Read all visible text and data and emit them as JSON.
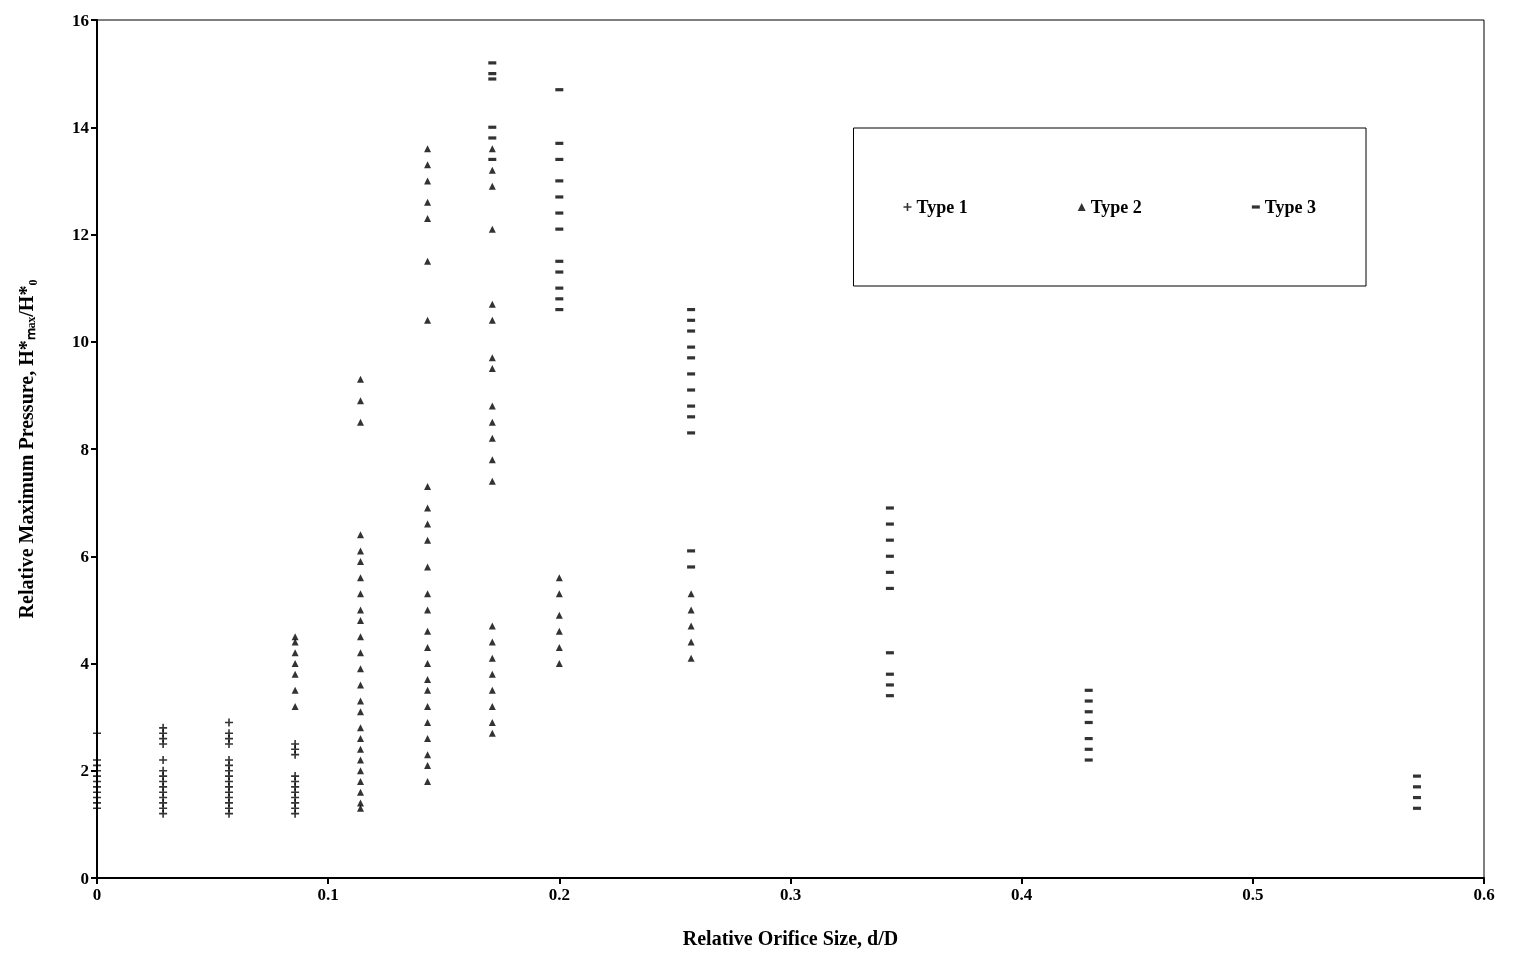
{
  "chart_data": {
    "type": "scatter",
    "xlabel": "Relative Orifice Size, d/D",
    "ylabel": "Relative Maximum Pressure, H*ₘₐₓ/H*₀",
    "xlim": [
      0,
      0.6
    ],
    "xticks": [
      0,
      0.1,
      0.2,
      0.3,
      0.4,
      0.5,
      0.6
    ],
    "ylim": [
      0,
      16
    ],
    "yticks": [
      0,
      2,
      4,
      6,
      8,
      10,
      12,
      14,
      16
    ],
    "grid": false,
    "legend": "top right",
    "series": [
      {
        "name": "Type 1",
        "color": "#000000",
        "marker": "cross",
        "x": [
          0,
          0,
          0,
          0,
          0,
          0,
          0,
          0,
          0,
          0,
          0,
          0.0286,
          0.0286,
          0.0286,
          0.0286,
          0.0286,
          0.0286,
          0.0286,
          0.0286,
          0.0286,
          0.0286,
          0.0286,
          0.0286,
          0.0286,
          0.0286,
          0.0571,
          0.0571,
          0.0571,
          0.0571,
          0.0571,
          0.0571,
          0.0571,
          0.0571,
          0.0571,
          0.0571,
          0.0571,
          0.0571,
          0.0571,
          0.0571,
          0.0571,
          0.0857,
          0.0857,
          0.0857,
          0.0857,
          0.0857,
          0.0857,
          0.0857,
          0.0857,
          0.0857,
          0.0857,
          0.0857
        ],
        "values": [
          1.3,
          1.4,
          1.5,
          1.6,
          1.7,
          1.8,
          1.9,
          2.0,
          2.1,
          2.2,
          2.7,
          1.2,
          1.3,
          1.4,
          1.5,
          1.6,
          1.7,
          1.8,
          1.9,
          2.0,
          2.2,
          2.5,
          2.6,
          2.7,
          2.8,
          1.2,
          1.3,
          1.4,
          1.5,
          1.6,
          1.7,
          1.8,
          1.9,
          2.0,
          2.1,
          2.2,
          2.5,
          2.6,
          2.7,
          2.9,
          1.2,
          1.3,
          1.4,
          1.5,
          1.6,
          1.7,
          1.8,
          1.9,
          2.3,
          2.4,
          2.5
        ]
      },
      {
        "name": "Type 2",
        "color": "#000000",
        "marker": "triangle",
        "x": [
          0.0857,
          0.0857,
          0.0857,
          0.0857,
          0.0857,
          0.0857,
          0.0857,
          0.114,
          0.114,
          0.114,
          0.114,
          0.114,
          0.114,
          0.114,
          0.114,
          0.114,
          0.114,
          0.114,
          0.114,
          0.114,
          0.114,
          0.114,
          0.114,
          0.114,
          0.114,
          0.114,
          0.114,
          0.114,
          0.114,
          0.114,
          0.114,
          0.114,
          0.143,
          0.143,
          0.143,
          0.143,
          0.143,
          0.143,
          0.143,
          0.143,
          0.143,
          0.143,
          0.143,
          0.143,
          0.143,
          0.143,
          0.143,
          0.143,
          0.143,
          0.143,
          0.143,
          0.143,
          0.143,
          0.143,
          0.143,
          0.143,
          0.143,
          0.171,
          0.171,
          0.171,
          0.171,
          0.171,
          0.171,
          0.171,
          0.171,
          0.171,
          0.171,
          0.171,
          0.171,
          0.171,
          0.171,
          0.171,
          0.171,
          0.171,
          0.171,
          0.171,
          0.171,
          0.171,
          0.2,
          0.2,
          0.2,
          0.2,
          0.2,
          0.2,
          0.257,
          0.257,
          0.257,
          0.257,
          0.257
        ],
        "values": [
          3.2,
          3.5,
          3.8,
          4.0,
          4.2,
          4.4,
          4.5,
          1.3,
          1.4,
          1.6,
          1.8,
          2.0,
          2.2,
          2.4,
          2.6,
          2.8,
          3.1,
          3.3,
          3.6,
          3.9,
          4.2,
          4.5,
          4.8,
          5.0,
          5.3,
          5.6,
          5.9,
          6.1,
          6.4,
          8.5,
          8.9,
          9.3,
          1.8,
          2.1,
          2.3,
          2.6,
          2.9,
          3.2,
          3.5,
          3.7,
          4.0,
          4.3,
          4.6,
          5.0,
          5.3,
          5.8,
          6.3,
          6.6,
          6.9,
          7.3,
          10.4,
          11.5,
          12.3,
          12.6,
          13.0,
          13.3,
          13.6,
          2.7,
          2.9,
          3.2,
          3.5,
          3.8,
          4.1,
          4.4,
          4.7,
          7.4,
          7.8,
          8.2,
          8.5,
          8.8,
          9.5,
          9.7,
          10.4,
          10.7,
          12.1,
          12.9,
          13.2,
          13.6,
          4.0,
          4.3,
          4.6,
          4.9,
          5.3,
          5.6,
          4.1,
          4.4,
          4.7,
          5.0,
          5.3
        ]
      },
      {
        "name": "Type 3",
        "color": "#000000",
        "marker": "square",
        "x": [
          0.171,
          0.171,
          0.171,
          0.171,
          0.171,
          0.171,
          0.2,
          0.2,
          0.2,
          0.2,
          0.2,
          0.2,
          0.2,
          0.2,
          0.2,
          0.2,
          0.2,
          0.2,
          0.257,
          0.257,
          0.257,
          0.257,
          0.257,
          0.257,
          0.257,
          0.257,
          0.257,
          0.257,
          0.257,
          0.257,
          0.343,
          0.343,
          0.343,
          0.343,
          0.343,
          0.343,
          0.343,
          0.343,
          0.343,
          0.343,
          0.429,
          0.429,
          0.429,
          0.429,
          0.429,
          0.429,
          0.429,
          0.571,
          0.571,
          0.571,
          0.571
        ],
        "values": [
          13.4,
          13.8,
          14.0,
          14.9,
          15.0,
          15.2,
          10.6,
          10.8,
          11.0,
          11.3,
          11.5,
          12.1,
          12.4,
          12.7,
          13.0,
          13.4,
          13.7,
          14.7,
          5.8,
          6.1,
          8.3,
          8.6,
          8.8,
          9.1,
          9.4,
          9.7,
          9.9,
          10.2,
          10.4,
          10.6,
          3.4,
          3.6,
          3.8,
          4.2,
          5.4,
          5.7,
          6.0,
          6.3,
          6.6,
          6.9,
          2.2,
          2.4,
          2.6,
          2.9,
          3.1,
          3.3,
          3.5,
          1.3,
          1.5,
          1.7,
          1.9
        ]
      }
    ]
  }
}
